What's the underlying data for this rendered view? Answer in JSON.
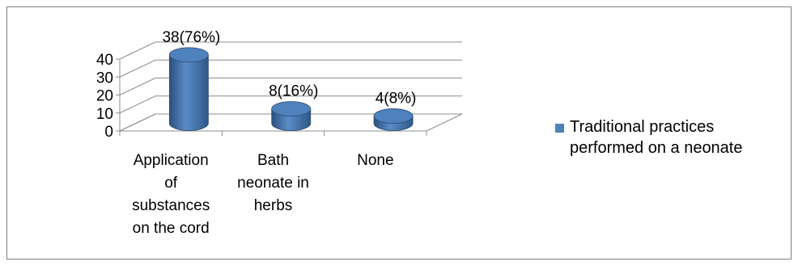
{
  "chart_data": {
    "type": "bar",
    "style": "3d-cylinder",
    "title": "",
    "xlabel": "",
    "ylabel": "",
    "categories": [
      [
        "Application",
        "of",
        "substances",
        "on the cord"
      ],
      [
        "Bath",
        "neonate in",
        "herbs"
      ],
      [
        "None"
      ]
    ],
    "series": [
      {
        "name": "Traditional practices performed on a neonate",
        "values": [
          38,
          8,
          4
        ],
        "data_labels": [
          "38(76%)",
          "8(16%)",
          "4(8%)"
        ],
        "color": "#4F81BD"
      }
    ],
    "yticks": [
      "0",
      "10",
      "20",
      "30",
      "40"
    ],
    "ylim": [
      0,
      40
    ],
    "grid": true,
    "legend_position": "right"
  },
  "legend": {
    "label_lines": [
      "Traditional practices",
      "performed on a neonate"
    ],
    "color": "#4F81BD"
  }
}
